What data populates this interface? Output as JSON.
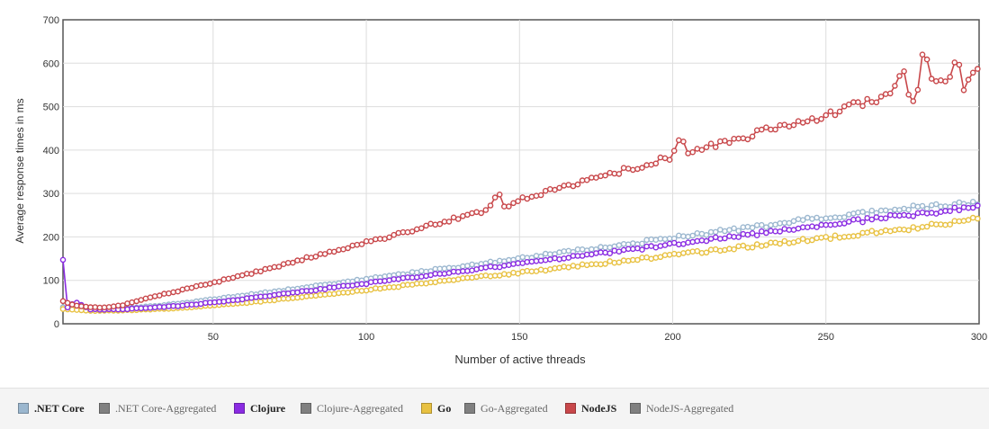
{
  "chart_data": {
    "type": "line",
    "xlabel": "Number of active threads",
    "ylabel": "Average response times in ms",
    "xlim": [
      1,
      300
    ],
    "ylim": [
      0,
      700
    ],
    "x_ticks": [
      "50",
      "100",
      "150",
      "200",
      "250",
      "300"
    ],
    "y_ticks": [
      "0",
      "100",
      "200",
      "300",
      "400",
      "500",
      "600",
      "700"
    ],
    "grid": true,
    "legend_position": "bottom",
    "series": [
      {
        "name": ".NET Core",
        "color": "#9bb7cf",
        "points": [
          [
            1,
            38
          ],
          [
            10,
            32
          ],
          [
            20,
            36
          ],
          [
            30,
            40
          ],
          [
            40,
            47
          ],
          [
            50,
            56
          ],
          [
            60,
            65
          ],
          [
            70,
            74
          ],
          [
            80,
            84
          ],
          [
            90,
            93
          ],
          [
            100,
            103
          ],
          [
            110,
            112
          ],
          [
            120,
            122
          ],
          [
            130,
            131
          ],
          [
            140,
            141
          ],
          [
            150,
            150
          ],
          [
            160,
            160
          ],
          [
            170,
            169
          ],
          [
            180,
            179
          ],
          [
            190,
            188
          ],
          [
            200,
            198
          ],
          [
            210,
            207
          ],
          [
            220,
            217
          ],
          [
            230,
            226
          ],
          [
            240,
            236
          ],
          [
            250,
            245
          ],
          [
            260,
            254
          ],
          [
            270,
            262
          ],
          [
            280,
            268
          ],
          [
            290,
            273
          ],
          [
            300,
            280
          ]
        ]
      },
      {
        "name": "Clojure",
        "color": "#8a2be2",
        "points": [
          [
            1,
            148
          ],
          [
            2,
            35
          ],
          [
            5,
            50
          ],
          [
            10,
            33
          ],
          [
            20,
            33
          ],
          [
            30,
            37
          ],
          [
            40,
            42
          ],
          [
            50,
            49
          ],
          [
            60,
            57
          ],
          [
            70,
            66
          ],
          [
            80,
            75
          ],
          [
            90,
            84
          ],
          [
            100,
            93
          ],
          [
            110,
            102
          ],
          [
            120,
            111
          ],
          [
            130,
            120
          ],
          [
            140,
            129
          ],
          [
            150,
            138
          ],
          [
            160,
            147
          ],
          [
            170,
            156
          ],
          [
            180,
            165
          ],
          [
            190,
            174
          ],
          [
            200,
            183
          ],
          [
            210,
            192
          ],
          [
            220,
            201
          ],
          [
            230,
            210
          ],
          [
            240,
            219
          ],
          [
            250,
            228
          ],
          [
            260,
            237
          ],
          [
            270,
            245
          ],
          [
            280,
            253
          ],
          [
            290,
            261
          ],
          [
            300,
            268
          ]
        ]
      },
      {
        "name": "Go",
        "color": "#e8c141",
        "points": [
          [
            1,
            34
          ],
          [
            10,
            30
          ],
          [
            20,
            31
          ],
          [
            30,
            33
          ],
          [
            40,
            37
          ],
          [
            50,
            42
          ],
          [
            60,
            48
          ],
          [
            70,
            55
          ],
          [
            80,
            62
          ],
          [
            90,
            70
          ],
          [
            100,
            78
          ],
          [
            110,
            86
          ],
          [
            120,
            94
          ],
          [
            130,
            102
          ],
          [
            140,
            110
          ],
          [
            150,
            118
          ],
          [
            160,
            126
          ],
          [
            170,
            134
          ],
          [
            180,
            142
          ],
          [
            190,
            150
          ],
          [
            200,
            158
          ],
          [
            210,
            166
          ],
          [
            220,
            174
          ],
          [
            230,
            182
          ],
          [
            240,
            190
          ],
          [
            250,
            198
          ],
          [
            260,
            206
          ],
          [
            270,
            214
          ],
          [
            280,
            222
          ],
          [
            290,
            232
          ],
          [
            300,
            242
          ]
        ]
      },
      {
        "name": "NodeJS",
        "color": "#c8474a",
        "points": [
          [
            1,
            52
          ],
          [
            5,
            42
          ],
          [
            10,
            38
          ],
          [
            15,
            38
          ],
          [
            20,
            42
          ],
          [
            25,
            52
          ],
          [
            30,
            62
          ],
          [
            40,
            78
          ],
          [
            50,
            95
          ],
          [
            60,
            112
          ],
          [
            70,
            130
          ],
          [
            80,
            150
          ],
          [
            90,
            168
          ],
          [
            100,
            188
          ],
          [
            110,
            205
          ],
          [
            120,
            225
          ],
          [
            130,
            245
          ],
          [
            140,
            262
          ],
          [
            143,
            312
          ],
          [
            145,
            270
          ],
          [
            150,
            285
          ],
          [
            160,
            305
          ],
          [
            170,
            325
          ],
          [
            180,
            345
          ],
          [
            190,
            365
          ],
          [
            200,
            385
          ],
          [
            203,
            432
          ],
          [
            205,
            395
          ],
          [
            210,
            405
          ],
          [
            220,
            420
          ],
          [
            230,
            445
          ],
          [
            240,
            465
          ],
          [
            250,
            478
          ],
          [
            260,
            505
          ],
          [
            270,
            525
          ],
          [
            275,
            590
          ],
          [
            278,
            490
          ],
          [
            280,
            545
          ],
          [
            282,
            655
          ],
          [
            284,
            560
          ],
          [
            290,
            565
          ],
          [
            293,
            615
          ],
          [
            295,
            545
          ],
          [
            298,
            580
          ],
          [
            300,
            590
          ]
        ]
      }
    ],
    "legend": [
      {
        "label": ".NET Core",
        "color": "#9bb7cf",
        "primary": true
      },
      {
        "label": ".NET Core-Aggregated",
        "color": "#808080",
        "primary": false
      },
      {
        "label": "Clojure",
        "color": "#8a2be2",
        "primary": true
      },
      {
        "label": "Clojure-Aggregated",
        "color": "#808080",
        "primary": false
      },
      {
        "label": "Go",
        "color": "#e8c141",
        "primary": true
      },
      {
        "label": "Go-Aggregated",
        "color": "#808080",
        "primary": false
      },
      {
        "label": "NodeJS",
        "color": "#c8474a",
        "primary": true
      },
      {
        "label": "NodeJS-Aggregated",
        "color": "#808080",
        "primary": false
      }
    ]
  }
}
